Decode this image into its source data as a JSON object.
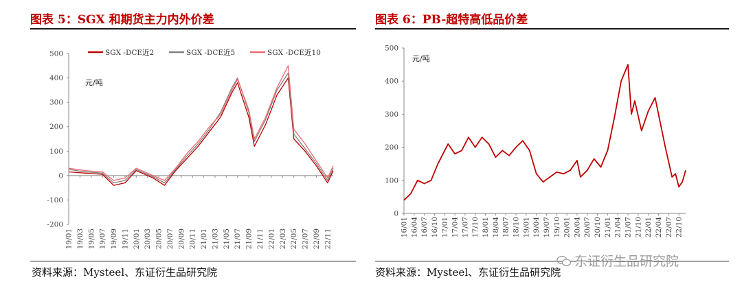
{
  "left_panel": {
    "title": "图表 5：SGX 和期货主力内外价差",
    "source": "资料来源：Mysteel、东证衍生品研究院"
  },
  "right_panel": {
    "title": "图表 6：PB-超特高低品价差",
    "source": "资料来源：Mysteel、东证衍生品研究院",
    "watermark": "东证衍生品研究院"
  },
  "colors": {
    "title": "#c00000",
    "series_dark": "#c00000",
    "series_grey": "#808080",
    "series_pink": "#f06a70"
  },
  "chart_data": [
    {
      "type": "line",
      "unit_label": "元/吨",
      "ylim": [
        -200,
        500
      ],
      "yticks": [
        -200,
        -100,
        0,
        100,
        200,
        300,
        400,
        500
      ],
      "xticks": [
        "19/01",
        "19/03",
        "19/05",
        "19/07",
        "19/09",
        "19/11",
        "20/01",
        "20/03",
        "20/05",
        "20/07",
        "20/09",
        "20/11",
        "21/01",
        "21/03",
        "21/05",
        "21/07",
        "21/09",
        "21/11",
        "22/01",
        "22/03",
        "22/05",
        "22/07",
        "22/09",
        "22/11"
      ],
      "legend_position": "top",
      "series": [
        {
          "name": "SGX -DCE近2",
          "color": "#c00000",
          "x": [
            "19/01",
            "19/04",
            "19/07",
            "19/09",
            "19/11",
            "20/01",
            "20/04",
            "20/06",
            "20/08",
            "20/10",
            "20/12",
            "21/02",
            "21/04",
            "21/06",
            "21/07",
            "21/09",
            "21/10",
            "21/12",
            "22/02",
            "22/04",
            "22/05",
            "22/07",
            "22/09",
            "22/11",
            "22/12"
          ],
          "values": [
            15,
            10,
            5,
            -40,
            -30,
            20,
            -10,
            -40,
            20,
            70,
            120,
            180,
            240,
            340,
            380,
            240,
            120,
            210,
            330,
            400,
            150,
            100,
            40,
            -30,
            20
          ]
        },
        {
          "name": "SGX -DCE近5",
          "color": "#808080",
          "x": [
            "19/01",
            "19/04",
            "19/07",
            "19/09",
            "19/11",
            "20/01",
            "20/04",
            "20/06",
            "20/08",
            "20/10",
            "20/12",
            "21/02",
            "21/04",
            "21/06",
            "21/07",
            "21/09",
            "21/10",
            "21/12",
            "22/02",
            "22/04",
            "22/05",
            "22/07",
            "22/09",
            "22/11",
            "22/12"
          ],
          "values": [
            25,
            15,
            10,
            -30,
            -20,
            25,
            -5,
            -30,
            25,
            80,
            130,
            190,
            260,
            360,
            400,
            260,
            140,
            230,
            350,
            420,
            170,
            110,
            50,
            -20,
            30
          ]
        },
        {
          "name": "SGX -DCE近10",
          "color": "#f06a70",
          "x": [
            "19/01",
            "19/04",
            "19/07",
            "19/09",
            "19/11",
            "20/01",
            "20/04",
            "20/06",
            "20/08",
            "20/10",
            "20/12",
            "21/02",
            "21/04",
            "21/06",
            "21/07",
            "21/09",
            "21/10",
            "21/12",
            "22/02",
            "22/04",
            "22/05",
            "22/07",
            "22/09",
            "22/11",
            "22/12"
          ],
          "values": [
            30,
            20,
            15,
            -20,
            -10,
            30,
            0,
            -20,
            30,
            90,
            140,
            200,
            250,
            350,
            395,
            270,
            150,
            240,
            360,
            450,
            190,
            130,
            60,
            -10,
            40
          ]
        }
      ]
    },
    {
      "type": "line",
      "unit_label": "元/吨",
      "ylim": [
        0,
        500
      ],
      "yticks": [
        0,
        100,
        200,
        300,
        400,
        500
      ],
      "xticks": [
        "16/01",
        "16/04",
        "16/07",
        "16/10",
        "17/01",
        "17/04",
        "17/07",
        "17/10",
        "18/01",
        "18/04",
        "18/07",
        "18/10",
        "19/01",
        "19/04",
        "19/07",
        "19/10",
        "20/01",
        "20/04",
        "20/07",
        "20/10",
        "21/01",
        "21/04",
        "21/07",
        "21/10",
        "22/01",
        "22/04",
        "22/07",
        "22/10"
      ],
      "series": [
        {
          "name": "",
          "color": "#c00000",
          "x": [
            "16/01",
            "16/03",
            "16/05",
            "16/07",
            "16/09",
            "16/11",
            "17/02",
            "17/04",
            "17/06",
            "17/08",
            "17/10",
            "17/12",
            "18/02",
            "18/04",
            "18/06",
            "18/08",
            "18/10",
            "18/12",
            "19/02",
            "19/04",
            "19/06",
            "19/08",
            "19/10",
            "19/12",
            "20/02",
            "20/04",
            "20/05",
            "20/07",
            "20/09",
            "20/11",
            "21/01",
            "21/03",
            "21/05",
            "21/07",
            "21/08",
            "21/09",
            "21/11",
            "22/01",
            "22/03",
            "22/04",
            "22/06",
            "22/08",
            "22/09",
            "22/10",
            "22/11",
            "22/12"
          ],
          "values": [
            40,
            60,
            100,
            90,
            100,
            150,
            210,
            180,
            190,
            230,
            200,
            230,
            210,
            170,
            190,
            175,
            200,
            220,
            190,
            120,
            95,
            110,
            125,
            120,
            130,
            160,
            110,
            130,
            165,
            140,
            190,
            290,
            400,
            450,
            300,
            340,
            250,
            310,
            350,
            300,
            200,
            110,
            120,
            80,
            95,
            130
          ]
        }
      ]
    }
  ]
}
